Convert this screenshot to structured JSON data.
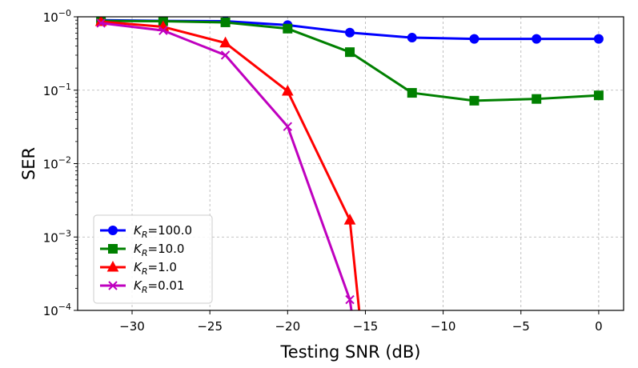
{
  "chart_data": {
    "type": "line",
    "title": "",
    "xlabel": "Testing SNR (dB)",
    "ylabel": "SER",
    "yscale": "log",
    "xlim": [
      -33.5,
      1.6
    ],
    "ylim": [
      0.0001,
      1.0
    ],
    "grid": true,
    "legend_position": "lower-left",
    "x_ticks": [
      -30,
      -25,
      -20,
      -15,
      -10,
      -5,
      0
    ],
    "x_tick_labels": [
      "−30",
      "−25",
      "−20",
      "−15",
      "−10",
      "−5",
      "0"
    ],
    "y_ticks": [
      0.0001,
      0.001,
      0.01,
      0.1,
      1.0
    ],
    "y_tick_labels": [
      {
        "base": "10",
        "exp": "−4"
      },
      {
        "base": "10",
        "exp": "−3"
      },
      {
        "base": "10",
        "exp": "−2"
      },
      {
        "base": "10",
        "exp": "−1"
      },
      {
        "base": "10",
        "exp": "−0"
      }
    ],
    "series": [
      {
        "name": "K_R=100.0",
        "legend_main": "K",
        "legend_sub": "R",
        "legend_value": "=100.0",
        "color": "#0000ff",
        "marker": "circle",
        "points": [
          [
            -32,
            0.9
          ],
          [
            -28,
            0.88
          ],
          [
            -24,
            0.87
          ],
          [
            -20,
            0.77
          ],
          [
            -16,
            0.61
          ],
          [
            -12,
            0.52
          ],
          [
            -8,
            0.5
          ],
          [
            -4,
            0.5
          ],
          [
            0,
            0.5
          ]
        ]
      },
      {
        "name": "K_R=10.0",
        "legend_main": "K",
        "legend_sub": "R",
        "legend_value": "=10.0",
        "color": "#008000",
        "marker": "square",
        "points": [
          [
            -32,
            0.88
          ],
          [
            -28,
            0.87
          ],
          [
            -24,
            0.84
          ],
          [
            -20,
            0.69
          ],
          [
            -16,
            0.33
          ],
          [
            -12,
            0.092
          ],
          [
            -8,
            0.072
          ],
          [
            -4,
            0.076
          ],
          [
            0,
            0.085
          ]
        ]
      },
      {
        "name": "K_R=1.0",
        "legend_main": "K",
        "legend_sub": "R",
        "legend_value": "=1.0",
        "color": "#ff0000",
        "marker": "triangle",
        "points": [
          [
            -32,
            0.86
          ],
          [
            -28,
            0.73
          ],
          [
            -24,
            0.44
          ],
          [
            -20,
            0.097
          ],
          [
            -16,
            0.0017
          ],
          [
            -15.4,
            0.0001
          ]
        ]
      },
      {
        "name": "K_R=0.01",
        "legend_main": "K",
        "legend_sub": "R",
        "legend_value": "=0.01",
        "color": "#bf00bf",
        "marker": "x",
        "points": [
          [
            -32,
            0.82
          ],
          [
            -28,
            0.65
          ],
          [
            -24,
            0.3
          ],
          [
            -20,
            0.032
          ],
          [
            -16,
            0.00014
          ],
          [
            -15.9,
            0.0001
          ]
        ]
      }
    ]
  }
}
